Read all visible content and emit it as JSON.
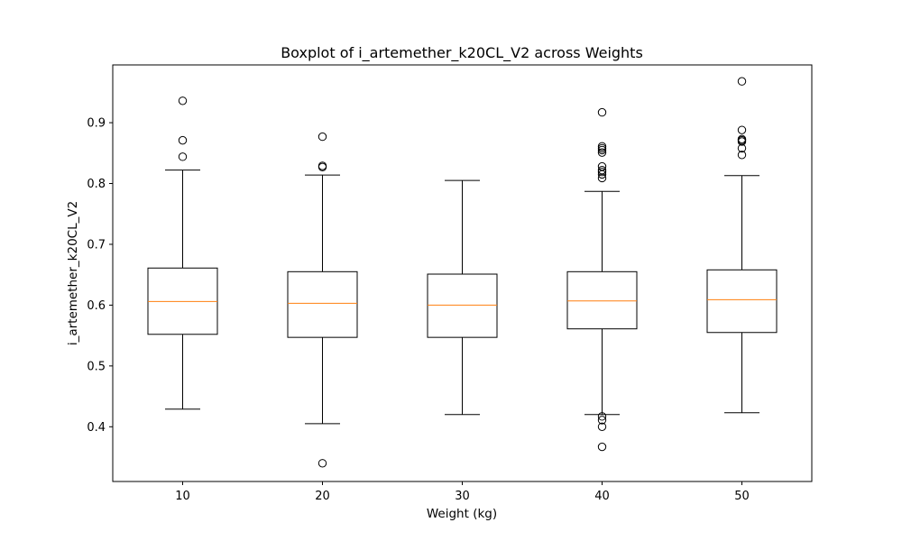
{
  "chart_data": {
    "type": "box",
    "title": "Boxplot of i_artemether_k20CL_V2 across Weights",
    "xlabel": "Weight (kg)",
    "ylabel": "i_artemether_k20CL_V2",
    "ylim": [
      0.31,
      0.995
    ],
    "yticks": [
      0.4,
      0.5,
      0.6,
      0.7,
      0.8,
      0.9
    ],
    "ytick_labels": [
      "0.4",
      "0.5",
      "0.6",
      "0.7",
      "0.8",
      "0.9"
    ],
    "grid": false,
    "colors": {
      "box": "#000000",
      "median": "#ff7f0e",
      "outlier": "#000000"
    },
    "categories": [
      "10",
      "20",
      "30",
      "40",
      "50"
    ],
    "boxes": [
      {
        "category": "10",
        "whisker_low": 0.429,
        "q1": 0.552,
        "median": 0.606,
        "q3": 0.661,
        "whisker_high": 0.822,
        "outliers": [
          0.844,
          0.871,
          0.936
        ]
      },
      {
        "category": "20",
        "whisker_low": 0.405,
        "q1": 0.547,
        "median": 0.603,
        "q3": 0.655,
        "whisker_high": 0.814,
        "outliers": [
          0.34,
          0.827,
          0.829,
          0.877
        ]
      },
      {
        "category": "30",
        "whisker_low": 0.42,
        "q1": 0.547,
        "median": 0.6,
        "q3": 0.651,
        "whisker_high": 0.805,
        "outliers": []
      },
      {
        "category": "40",
        "whisker_low": 0.42,
        "q1": 0.561,
        "median": 0.607,
        "q3": 0.655,
        "whisker_high": 0.787,
        "outliers": [
          0.367,
          0.4,
          0.411,
          0.417,
          0.809,
          0.815,
          0.819,
          0.822,
          0.828,
          0.851,
          0.855,
          0.858,
          0.861,
          0.917
        ]
      },
      {
        "category": "50",
        "whisker_low": 0.423,
        "q1": 0.555,
        "median": 0.609,
        "q3": 0.658,
        "whisker_high": 0.813,
        "outliers": [
          0.847,
          0.858,
          0.869,
          0.871,
          0.873,
          0.888,
          0.968
        ]
      }
    ]
  }
}
